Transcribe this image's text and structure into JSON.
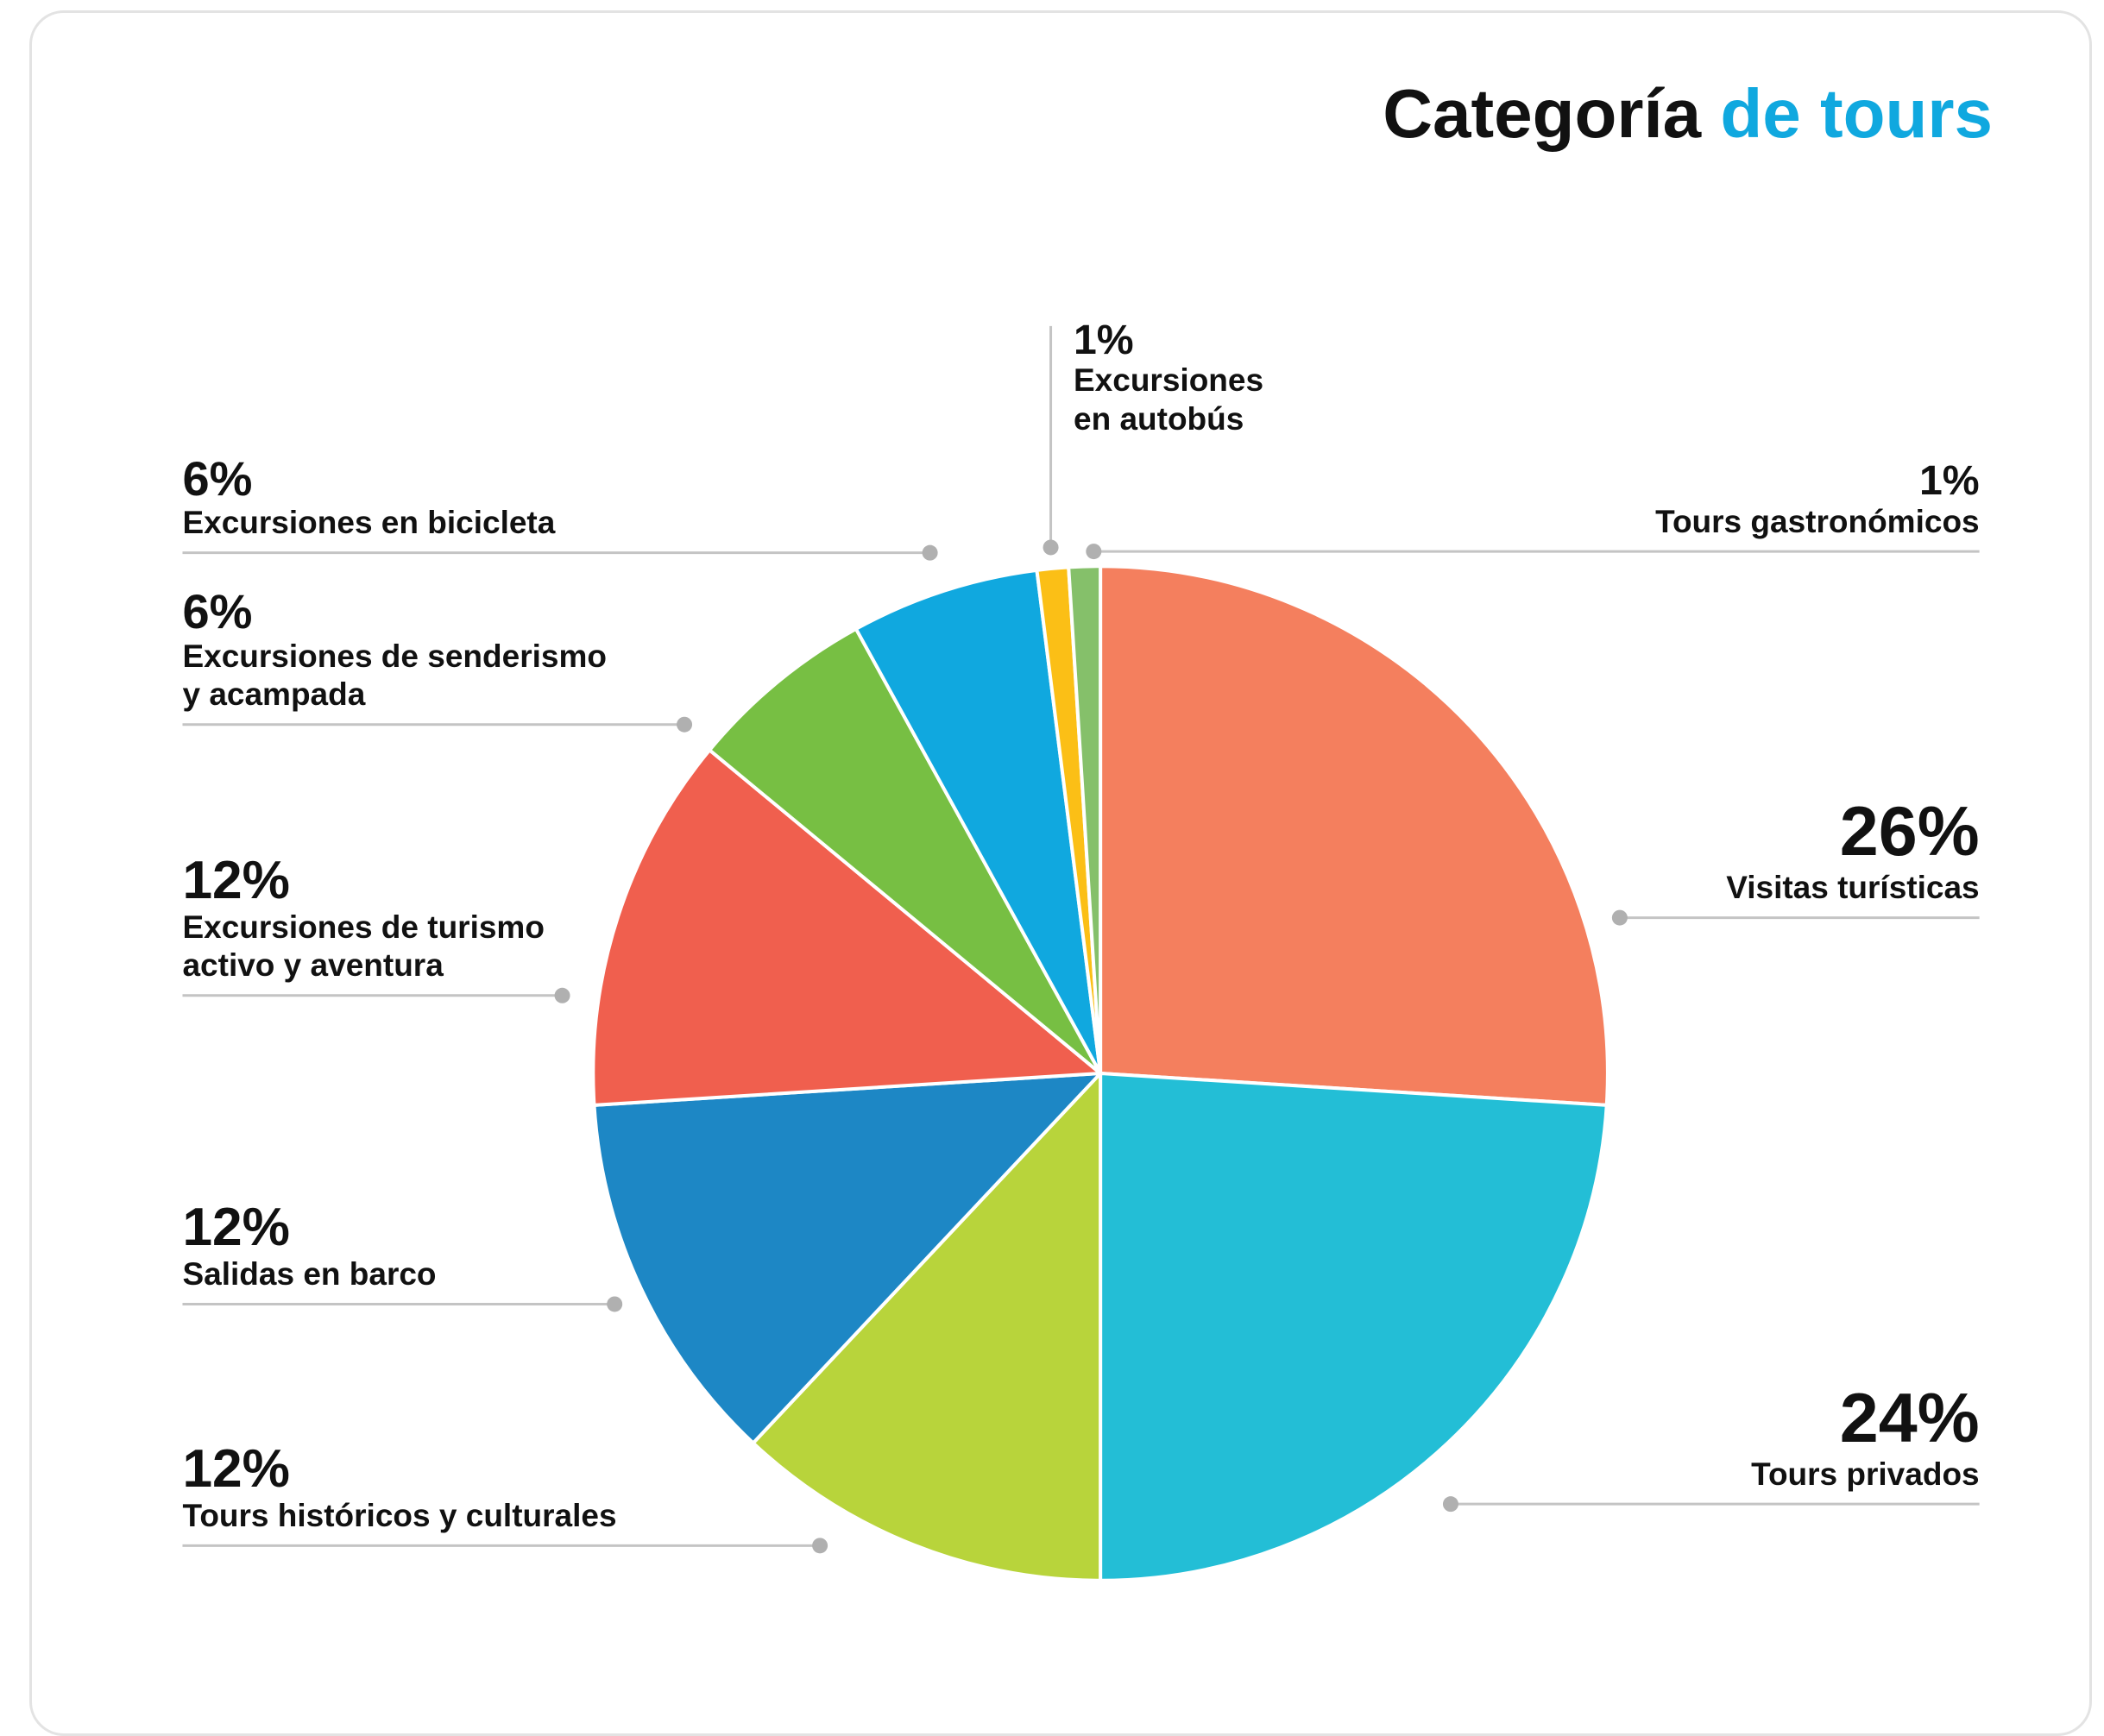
{
  "chart_data": {
    "type": "pie",
    "title": [
      "Categoría",
      "de tours"
    ],
    "categories": [
      "Visitas turísticas",
      "Tours privados",
      "Tours históricos y culturales",
      "Salidas en barco",
      "Excursiones de turismo activo y aventura",
      "Excursiones de senderismo y acampada",
      "Excursiones en bicicleta",
      "Excursiones en autobús",
      "Tours gastronómicos"
    ],
    "values": [
      26,
      24,
      12,
      12,
      12,
      6,
      6,
      1,
      1
    ],
    "value_labels": [
      "26%",
      "24%",
      "12%",
      "12%",
      "12%",
      "6%",
      "6%",
      "1%",
      "1%"
    ],
    "colors": [
      "#f47f5e",
      "#23bed6",
      "#b8d43b",
      "#1d87c5",
      "#f05f4e",
      "#77bf43",
      "#10a8df",
      "#fbbf16",
      "#85c06a"
    ]
  }
}
